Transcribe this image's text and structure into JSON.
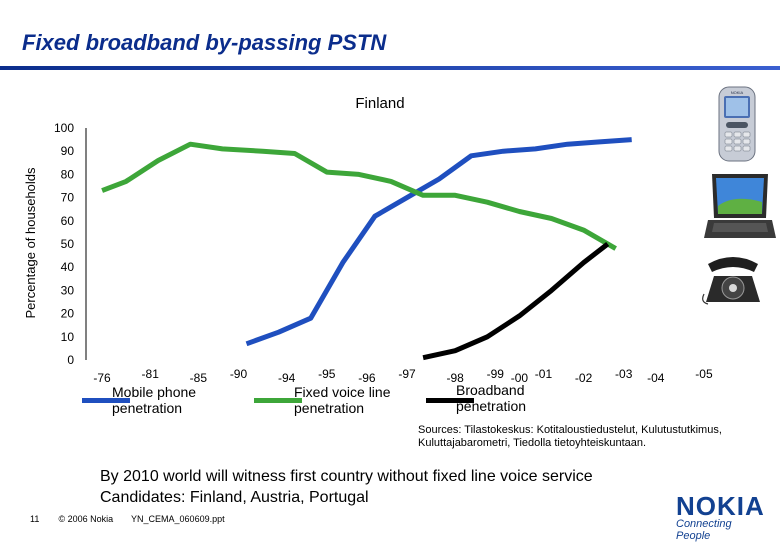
{
  "slide": {
    "title": "Fixed broadband by-passing PSTN",
    "sources_line1": "Sources: Tilastokeskus: Kotitaloustiedustelut, Kulutustutkimus,",
    "sources_line2": "Kuluttajabarometri, Tiedolla tietoyhteiskuntaan.",
    "notice_line1": "By 2010 world will witness first country without fixed line voice service",
    "notice_line2": "Candidates: Finland, Austria, Portugal",
    "footer": {
      "page": "11",
      "copyright": "© 2006 Nokia",
      "file": "YN_CEMA_060609.ppt"
    },
    "brand": {
      "name": "NOKIA",
      "slogan": "Connecting People",
      "color": "#124191"
    },
    "icons": [
      "mobile-phone-icon",
      "laptop-icon",
      "telephone-icon"
    ]
  },
  "chart_data": {
    "type": "line",
    "title": "Finland",
    "ylabel": "Percentage of households",
    "xlabel": "",
    "ylim": [
      0,
      100
    ],
    "yticks": [
      "0",
      "10",
      "20",
      "30",
      "40",
      "50",
      "60",
      "70",
      "80",
      "90",
      "100"
    ],
    "grid": false,
    "categories": [
      "-76",
      "-81",
      "-85",
      "-90",
      "-94",
      "-95",
      "-96",
      "-97",
      "-98",
      "-99",
      "-00",
      "-01",
      "-02",
      "-03",
      "-04",
      "-05"
    ],
    "xticks": [
      {
        "label": "-76",
        "x": 1976
      },
      {
        "label": "-81",
        "x": 1979
      },
      {
        "label": "-85",
        "x": 1982
      },
      {
        "label": "-90",
        "x": 1984.5
      },
      {
        "label": "-94",
        "x": 1987.5
      },
      {
        "label": "-95",
        "x": 1990
      },
      {
        "label": "-96",
        "x": 1992.5
      },
      {
        "label": "-97",
        "x": 1995
      },
      {
        "label": "-98",
        "x": 1998
      },
      {
        "label": "-99",
        "x": 2000.5
      },
      {
        "label": "-00",
        "x": 2002
      },
      {
        "label": "-01",
        "x": 2003.5
      },
      {
        "label": "-02",
        "x": 2006
      },
      {
        "label": "-03",
        "x": 2008.5
      },
      {
        "label": "-04",
        "x": 2010.5
      },
      {
        "label": "-05",
        "x": 2013.5
      }
    ],
    "series": [
      {
        "name": "Mobile phone\npenetration",
        "color": "#1f4fbf",
        "points": [
          [
            1985,
            7
          ],
          [
            1987,
            12
          ],
          [
            1989,
            18
          ],
          [
            1991,
            42
          ],
          [
            1993,
            62
          ],
          [
            1995,
            70
          ],
          [
            1997,
            78
          ],
          [
            1999,
            88
          ],
          [
            2001,
            90
          ],
          [
            2003,
            91
          ],
          [
            2005,
            93
          ],
          [
            2007,
            94
          ],
          [
            2009,
            95
          ]
        ]
      },
      {
        "name": "Fixed voice line\npenetration",
        "color": "#3da639",
        "points": [
          [
            1976,
            73
          ],
          [
            1977.5,
            77
          ],
          [
            1979.5,
            86
          ],
          [
            1981.5,
            93
          ],
          [
            1983.5,
            91
          ],
          [
            1986,
            90
          ],
          [
            1988,
            89
          ],
          [
            1990,
            81
          ],
          [
            1992,
            80
          ],
          [
            1994,
            77
          ],
          [
            1996,
            71
          ],
          [
            1998,
            71
          ],
          [
            2000,
            68
          ],
          [
            2002,
            64
          ],
          [
            2004,
            61
          ],
          [
            2006,
            56
          ],
          [
            2008,
            48
          ]
        ]
      },
      {
        "name": "Broadband\npenetration",
        "color": "#000000",
        "points": [
          [
            1996,
            1
          ],
          [
            1998,
            4
          ],
          [
            2000,
            10
          ],
          [
            2002,
            19
          ],
          [
            2004,
            30
          ],
          [
            2006,
            42
          ],
          [
            2007.5,
            50
          ]
        ]
      }
    ]
  }
}
